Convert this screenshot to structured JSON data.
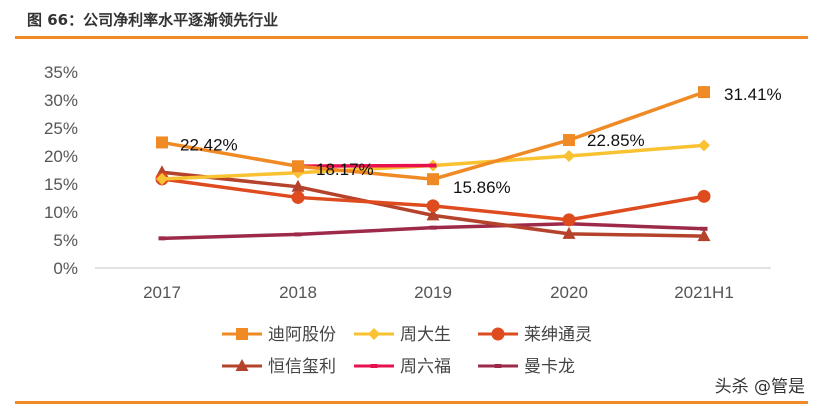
{
  "title": "图 66：公司净利率水平逐渐领先行业",
  "watermark": "头杀 @管是",
  "chart_data": {
    "type": "line",
    "title": "图 66：公司净利率水平逐渐领先行业",
    "categories": [
      "2017",
      "2018",
      "2019",
      "2020",
      "2021H1"
    ],
    "ylim": [
      0,
      35
    ],
    "yticks": [
      "0%",
      "5%",
      "10%",
      "15%",
      "20%",
      "25%",
      "30%",
      "35%"
    ],
    "grid": false,
    "legend": "bottom",
    "series": [
      {
        "name": "迪阿股份",
        "color": "#f08a24",
        "marker": "square",
        "values": [
          22.42,
          18.17,
          15.86,
          22.85,
          31.41
        ],
        "labels": [
          "22.42%",
          "18.17%",
          "15.86%",
          "22.85%",
          "31.41%"
        ]
      },
      {
        "name": "周大生",
        "color": "#f9c232",
        "marker": "diamond",
        "values": [
          15.9,
          17.0,
          18.3,
          20.0,
          21.9
        ]
      },
      {
        "name": "莱绅通灵",
        "color": "#de4b1e",
        "marker": "circle",
        "values": [
          15.9,
          12.6,
          11.1,
          8.6,
          12.8
        ]
      },
      {
        "name": "恒信玺利",
        "color": "#b5432b",
        "marker": "triangle",
        "values": [
          17.1,
          14.5,
          9.4,
          6.1,
          5.7
        ]
      },
      {
        "name": "周六福",
        "color": "#e8114f",
        "marker": "dash",
        "values": [
          null,
          18.2,
          18.3,
          null,
          null
        ]
      },
      {
        "name": "曼卡龙",
        "color": "#9e2a4a",
        "marker": "dash",
        "values": [
          5.3,
          6.0,
          7.2,
          7.9,
          7.0
        ]
      }
    ]
  }
}
